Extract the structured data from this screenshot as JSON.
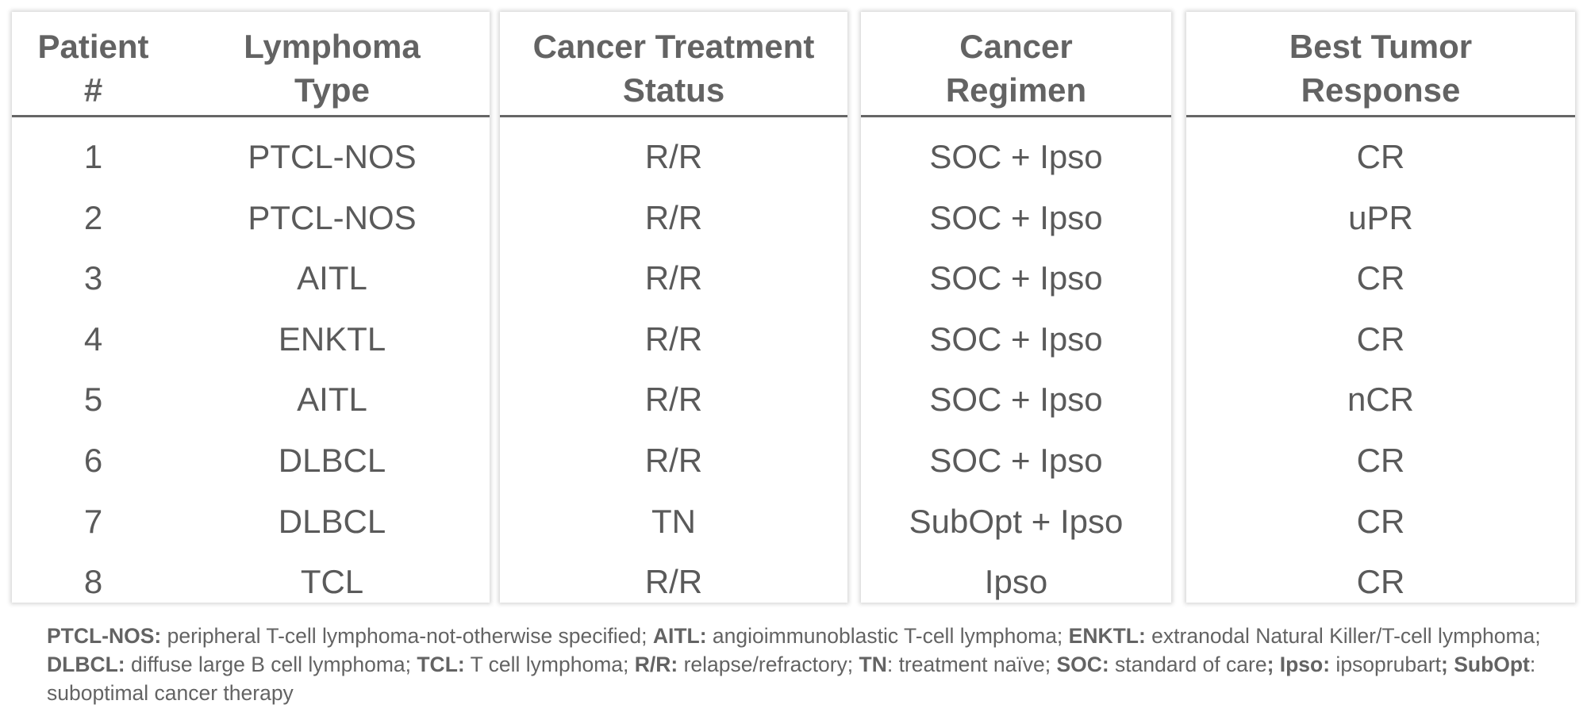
{
  "table": {
    "headers": {
      "patient": [
        "Patient",
        "#"
      ],
      "lymphoma": [
        "Lymphoma",
        "Type"
      ],
      "status": [
        "Cancer Treatment",
        "Status"
      ],
      "regimen": [
        "Cancer",
        "Regimen"
      ],
      "response": [
        "Best Tumor",
        "Response"
      ]
    },
    "rows": [
      {
        "patient": "1",
        "lymphoma": "PTCL-NOS",
        "status": "R/R",
        "regimen": "SOC + Ipso",
        "response": "CR"
      },
      {
        "patient": "2",
        "lymphoma": "PTCL-NOS",
        "status": "R/R",
        "regimen": "SOC + Ipso",
        "response": "uPR"
      },
      {
        "patient": "3",
        "lymphoma": "AITL",
        "status": "R/R",
        "regimen": "SOC + Ipso",
        "response": "CR"
      },
      {
        "patient": "4",
        "lymphoma": "ENKTL",
        "status": "R/R",
        "regimen": "SOC + Ipso",
        "response": "CR"
      },
      {
        "patient": "5",
        "lymphoma": "AITL",
        "status": "R/R",
        "regimen": "SOC + Ipso",
        "response": "nCR"
      },
      {
        "patient": "6",
        "lymphoma": "DLBCL",
        "status": "R/R",
        "regimen": "SOC + Ipso",
        "response": "CR"
      },
      {
        "patient": "7",
        "lymphoma": "DLBCL",
        "status": "TN",
        "regimen": "SubOpt + Ipso",
        "response": "CR"
      },
      {
        "patient": "8",
        "lymphoma": "TCL",
        "status": "R/R",
        "regimen": "Ipso",
        "response": "CR"
      }
    ]
  },
  "footnote": [
    {
      "term": "PTCL-NOS:",
      "def": " peripheral T-cell lymphoma-not-otherwise specified; "
    },
    {
      "term": "AITL:",
      "def": " angioimmunoblastic T-cell lymphoma; "
    },
    {
      "term": "ENKTL:",
      "def": " extranodal Natural Killer/T-cell lymphoma; "
    },
    {
      "term": "DLBCL:",
      "def": " diffuse large B cell lymphoma; "
    },
    {
      "term": "TCL:",
      "def": " T cell lymphoma; "
    },
    {
      "term": "R/R:",
      "def": " relapse/refractory; "
    },
    {
      "term": "TN",
      "def": ": treatment naïve; "
    },
    {
      "term": "SOC:",
      "def": " standard of care"
    },
    {
      "term": "; Ipso:",
      "def": " ipsoprubart"
    },
    {
      "term": "; SubOpt",
      "def": ": suboptimal cancer therapy"
    }
  ],
  "colors": {
    "text": "#5a5a5a",
    "header_rule": "#666666",
    "panel_shadow": "#d0d0d0"
  }
}
